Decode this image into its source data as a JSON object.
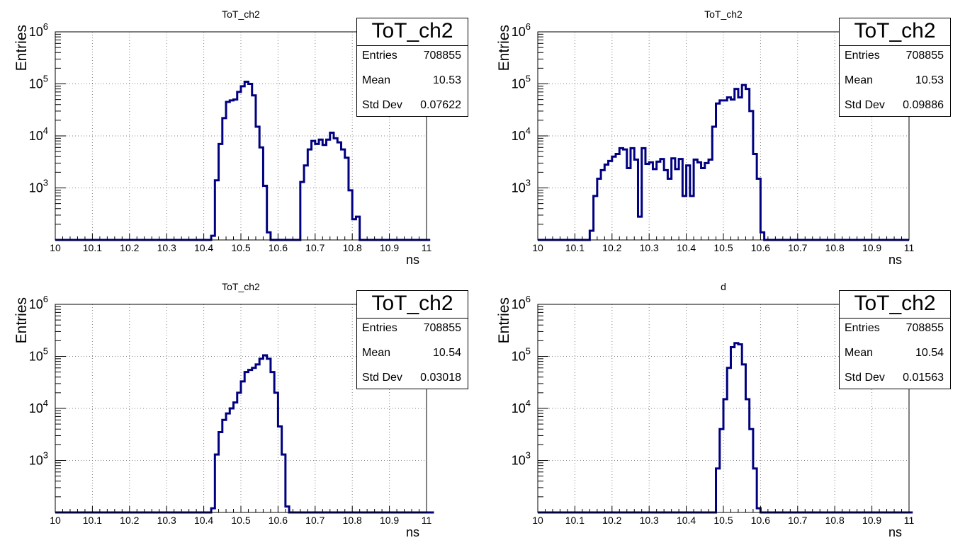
{
  "colors": {
    "line": "#000080",
    "grid": "#808080",
    "axis": "#000000"
  },
  "chart_data": [
    {
      "type": "histogram",
      "title": "ToT_ch2",
      "xlabel": "ns",
      "ylabel": "Entries",
      "xlim": [
        10,
        11
      ],
      "ylim": [
        100,
        1000000
      ],
      "log_y": true,
      "grid": true,
      "x_ticks": [
        "10",
        "10.1",
        "10.2",
        "10.3",
        "10.4",
        "10.5",
        "10.6",
        "10.7",
        "10.8",
        "10.9",
        "11"
      ],
      "y_ticks": [
        {
          "base": "10",
          "exp": "3"
        },
        {
          "base": "10",
          "exp": "4"
        },
        {
          "base": "10",
          "exp": "5"
        },
        {
          "base": "10",
          "exp": "6"
        }
      ],
      "bins": {
        "start": 10.0,
        "width": 0.01
      },
      "values": [
        0,
        0,
        0,
        0,
        0,
        0,
        0,
        0,
        0,
        0,
        0,
        0,
        0,
        0,
        0,
        0,
        0,
        0,
        0,
        0,
        0,
        0,
        0,
        0,
        0,
        0,
        0,
        0,
        0,
        0,
        0,
        0,
        0,
        0,
        0,
        0,
        0,
        0,
        0,
        0,
        0,
        0,
        120,
        1400,
        7000,
        22000,
        45000,
        48000,
        50000,
        70000,
        90000,
        110000,
        100000,
        60000,
        15000,
        6000,
        1100,
        140,
        0,
        0,
        0,
        0,
        0,
        0,
        0,
        0,
        1300,
        2700,
        5500,
        8000,
        7000,
        8500,
        6700,
        8500,
        11500,
        9000,
        7500,
        5500,
        3800,
        900,
        250,
        280,
        0,
        0,
        0,
        0,
        0,
        0,
        0,
        0,
        0,
        0,
        0,
        0,
        0,
        0,
        0,
        0,
        0,
        0,
        0
      ],
      "stats": {
        "title": "ToT_ch2",
        "rows": [
          {
            "label": "Entries",
            "value": "708855"
          },
          {
            "label": "Mean",
            "value": "10.53"
          },
          {
            "label": "Std Dev",
            "value": "0.07622"
          }
        ]
      }
    },
    {
      "type": "histogram",
      "title": "ToT_ch2",
      "xlabel": "ns",
      "ylabel": "Entries",
      "xlim": [
        10,
        11
      ],
      "ylim": [
        100,
        1000000
      ],
      "log_y": true,
      "grid": true,
      "x_ticks": [
        "10",
        "10.1",
        "10.2",
        "10.3",
        "10.4",
        "10.5",
        "10.6",
        "10.7",
        "10.8",
        "10.9",
        "11"
      ],
      "y_ticks": [
        {
          "base": "10",
          "exp": "3"
        },
        {
          "base": "10",
          "exp": "4"
        },
        {
          "base": "10",
          "exp": "5"
        },
        {
          "base": "10",
          "exp": "6"
        }
      ],
      "bins": {
        "start": 10.0,
        "width": 0.01
      },
      "values": [
        0,
        0,
        0,
        0,
        0,
        0,
        0,
        0,
        0,
        0,
        0,
        0,
        0,
        0,
        150,
        700,
        1500,
        2200,
        2800,
        3300,
        4000,
        4500,
        5800,
        5500,
        2400,
        5800,
        3500,
        280,
        5800,
        2900,
        3100,
        2300,
        3200,
        3600,
        2200,
        1500,
        3700,
        2300,
        3600,
        700,
        2700,
        700,
        3500,
        3100,
        2400,
        3000,
        3500,
        15000,
        42000,
        48000,
        48000,
        55000,
        50000,
        80000,
        55000,
        95000,
        80000,
        30000,
        4500,
        1500,
        140,
        0,
        0,
        0,
        0,
        0,
        0,
        0,
        0,
        0,
        0,
        0,
        0,
        0,
        0,
        0,
        0,
        0,
        0,
        0,
        0,
        0,
        0,
        0,
        0,
        0,
        0,
        0,
        0,
        0,
        0,
        0,
        0,
        0,
        0,
        0,
        0,
        0,
        0,
        0
      ],
      "stats": {
        "title": "ToT_ch2",
        "rows": [
          {
            "label": "Entries",
            "value": "708855"
          },
          {
            "label": "Mean",
            "value": "10.53"
          },
          {
            "label": "Std Dev",
            "value": "0.09886"
          }
        ]
      }
    },
    {
      "type": "histogram",
      "title": "ToT_ch2",
      "xlabel": "ns",
      "ylabel": "Entries",
      "xlim": [
        10,
        11
      ],
      "ylim": [
        100,
        1000000
      ],
      "log_y": true,
      "grid": true,
      "x_ticks": [
        "10",
        "10.1",
        "10.2",
        "10.3",
        "10.4",
        "10.5",
        "10.6",
        "10.7",
        "10.8",
        "10.9",
        "11"
      ],
      "y_ticks": [
        {
          "base": "10",
          "exp": "3"
        },
        {
          "base": "10",
          "exp": "4"
        },
        {
          "base": "10",
          "exp": "5"
        },
        {
          "base": "10",
          "exp": "6"
        }
      ],
      "bins": {
        "start": 10.0,
        "width": 0.01
      },
      "values": [
        0,
        0,
        0,
        0,
        0,
        0,
        0,
        0,
        0,
        0,
        0,
        0,
        0,
        0,
        0,
        0,
        0,
        0,
        0,
        0,
        0,
        0,
        0,
        0,
        0,
        0,
        0,
        0,
        0,
        0,
        0,
        0,
        0,
        0,
        0,
        0,
        0,
        0,
        0,
        0,
        0,
        0,
        120,
        1300,
        3500,
        6000,
        8000,
        10000,
        13000,
        20000,
        33000,
        50000,
        55000,
        60000,
        70000,
        90000,
        105000,
        90000,
        50000,
        20000,
        4500,
        1300,
        130,
        0,
        0,
        0,
        0,
        0,
        0,
        0,
        0,
        0,
        0,
        0,
        0,
        0,
        0,
        0,
        0,
        0,
        0,
        0,
        0,
        0,
        0,
        0,
        0,
        0,
        0,
        0,
        0,
        0,
        0,
        0,
        0,
        0,
        0,
        0,
        0,
        0,
        0,
        0
      ],
      "stats": {
        "title": "ToT_ch2",
        "rows": [
          {
            "label": "Entries",
            "value": "708855"
          },
          {
            "label": "Mean",
            "value": "10.54"
          },
          {
            "label": "Std Dev",
            "value": "0.03018"
          }
        ]
      }
    },
    {
      "type": "histogram",
      "title": "d",
      "xlabel": "ns",
      "ylabel": "Entries",
      "xlim": [
        10,
        11
      ],
      "ylim": [
        100,
        1000000
      ],
      "log_y": true,
      "grid": true,
      "x_ticks": [
        "10",
        "10.1",
        "10.2",
        "10.3",
        "10.4",
        "10.5",
        "10.6",
        "10.7",
        "10.8",
        "10.9",
        "11"
      ],
      "y_ticks": [
        {
          "base": "10",
          "exp": "3"
        },
        {
          "base": "10",
          "exp": "4"
        },
        {
          "base": "10",
          "exp": "5"
        },
        {
          "base": "10",
          "exp": "6"
        }
      ],
      "bins": {
        "start": 10.0,
        "width": 0.01
      },
      "values": [
        0,
        0,
        0,
        0,
        0,
        0,
        0,
        0,
        0,
        0,
        0,
        0,
        0,
        0,
        0,
        0,
        0,
        0,
        0,
        0,
        0,
        0,
        0,
        0,
        0,
        0,
        0,
        0,
        0,
        0,
        0,
        0,
        0,
        0,
        0,
        0,
        0,
        0,
        0,
        0,
        0,
        0,
        0,
        0,
        0,
        0,
        0,
        0,
        700,
        4000,
        15000,
        60000,
        150000,
        180000,
        170000,
        70000,
        15000,
        4000,
        700,
        120,
        0,
        0,
        0,
        0,
        0,
        0,
        0,
        0,
        0,
        0,
        0,
        0,
        0,
        0,
        0,
        0,
        0,
        0,
        0,
        0,
        0,
        0,
        0,
        0,
        0,
        0,
        0,
        0,
        0,
        0,
        0,
        0,
        0,
        0,
        0,
        0,
        0,
        0,
        0,
        0,
        0
      ],
      "stats": {
        "title": "ToT_ch2",
        "rows": [
          {
            "label": "Entries",
            "value": "708855"
          },
          {
            "label": "Mean",
            "value": "10.54"
          },
          {
            "label": "Std Dev",
            "value": "0.01563"
          }
        ]
      }
    }
  ]
}
